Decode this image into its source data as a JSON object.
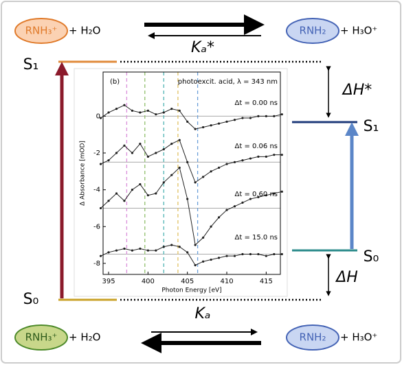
{
  "top": {
    "reactant": "RNH₃⁺",
    "reactant_partner": "+ H₂O",
    "constant": "Kₐ*",
    "product": "RNH₂",
    "product_partner": "+ H₃O⁺"
  },
  "bottom": {
    "reactant": "RNH₃⁺",
    "reactant_partner": "+ H₂O",
    "constant": "Kₐ",
    "product": "RNH₂",
    "product_partner": "+ H₃O⁺"
  },
  "levels": {
    "left_s1": "S₁",
    "left_s0": "S₀",
    "right_s1": "S₁",
    "right_s0": "S₀",
    "dh_excited": "ΔH*",
    "dh_ground": "ΔH"
  },
  "chart_data": {
    "type": "scatter-line",
    "panel": "(b)",
    "title": "photoexcit. acid, λ = 343 nm",
    "x_label": "Photon Energy [eV]",
    "y_label": "Δ Absorbance [mOD]",
    "xlim": [
      394.3,
      416.8
    ],
    "xticks": [
      395,
      400,
      405,
      410,
      415
    ],
    "ylim": [
      -8.6,
      2.4
    ],
    "yticks": [
      0,
      -2,
      -4,
      -6,
      -8
    ],
    "baselines": [
      0,
      -2.5,
      -5,
      -7.5
    ],
    "markers": [
      {
        "value": 397.3,
        "color": "#d98ed9"
      },
      {
        "value": 399.6,
        "color": "#8fbf6a"
      },
      {
        "value": 402,
        "color": "#4fb3b3"
      },
      {
        "value": 403.8,
        "color": "#e0c060"
      },
      {
        "value": 406.3,
        "color": "#6a9fd8"
      }
    ],
    "x": [
      394,
      395,
      396,
      397,
      398,
      399,
      400,
      401,
      402,
      403,
      404,
      405,
      406,
      407,
      408,
      409,
      410,
      411,
      412,
      413,
      414,
      415,
      416,
      417
    ],
    "series": [
      {
        "name": "Δt = 0.00 ns",
        "color": "#222",
        "values": [
          -0.1,
          0.2,
          0.4,
          0.6,
          0.3,
          0.2,
          0.3,
          0.1,
          0.2,
          0.4,
          0.3,
          -0.3,
          -0.7,
          -0.6,
          -0.5,
          -0.4,
          -0.3,
          -0.2,
          -0.1,
          -0.1,
          0,
          0,
          0,
          0.1
        ]
      },
      {
        "name": "Δt = 0.06 ns",
        "color": "#222",
        "values": [
          -2.6,
          -2.4,
          -2.0,
          -1.6,
          -2.0,
          -1.5,
          -2.2,
          -2.0,
          -1.8,
          -1.5,
          -1.3,
          -2.5,
          -3.6,
          -3.3,
          -3.0,
          -2.8,
          -2.6,
          -2.5,
          -2.4,
          -2.3,
          -2.2,
          -2.2,
          -2.1,
          -2.1
        ]
      },
      {
        "name": "Δt = 0.60 ns",
        "color": "#222",
        "values": [
          -5.0,
          -4.6,
          -4.2,
          -4.6,
          -4.0,
          -3.7,
          -4.3,
          -4.2,
          -3.6,
          -3.2,
          -2.8,
          -4.5,
          -7.0,
          -6.6,
          -6.0,
          -5.5,
          -5.1,
          -4.9,
          -4.7,
          -4.5,
          -4.4,
          -4.3,
          -4.2,
          -4.1
        ]
      },
      {
        "name": "Δt = 15.0 ns",
        "color": "#222",
        "values": [
          -7.6,
          -7.4,
          -7.3,
          -7.2,
          -7.3,
          -7.2,
          -7.3,
          -7.3,
          -7.1,
          -7.0,
          -7.1,
          -7.4,
          -8.1,
          -7.9,
          -7.8,
          -7.7,
          -7.6,
          -7.6,
          -7.5,
          -7.5,
          -7.5,
          -7.6,
          -7.5,
          -7.5
        ]
      }
    ]
  }
}
